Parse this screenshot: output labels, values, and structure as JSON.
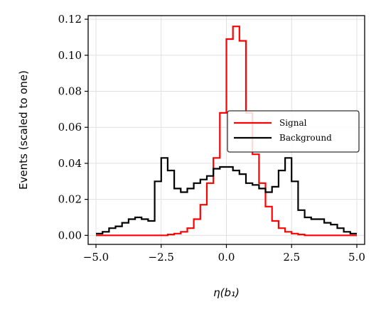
{
  "chart_data": {
    "type": "line",
    "step": true,
    "title": "",
    "xlabel": "η(b₁)",
    "ylabel": "Events (scaled to one)",
    "xlim": [
      -5.3,
      5.3
    ],
    "ylim": [
      -0.005,
      0.122
    ],
    "grid": true,
    "legend_placement": "center-right",
    "x_ticks": [
      -5.0,
      -2.5,
      0.0,
      2.5,
      5.0
    ],
    "x_tick_labels": [
      "−5.0",
      "−2.5",
      "0.0",
      "2.5",
      "5.0"
    ],
    "y_ticks": [
      0.0,
      0.02,
      0.04,
      0.06,
      0.08,
      0.1,
      0.12
    ],
    "y_tick_labels": [
      "0.00",
      "0.02",
      "0.04",
      "0.06",
      "0.08",
      "0.10",
      "0.12"
    ],
    "bin_edges": [
      -5.0,
      -4.75,
      -4.5,
      -4.25,
      -4.0,
      -3.75,
      -3.5,
      -3.25,
      -3.0,
      -2.75,
      -2.5,
      -2.25,
      -2.0,
      -1.75,
      -1.5,
      -1.25,
      -1.0,
      -0.75,
      -0.5,
      -0.25,
      0.0,
      0.25,
      0.5,
      0.75,
      1.0,
      1.25,
      1.5,
      1.75,
      2.0,
      2.25,
      2.5,
      2.75,
      3.0,
      3.25,
      3.5,
      3.75,
      4.0,
      4.25,
      4.5,
      4.75,
      5.0
    ],
    "series": [
      {
        "name": "Signal",
        "color": "#ff0000",
        "values": [
          0.0,
          0.0,
          0.0,
          0.0,
          0.0,
          0.0,
          0.0,
          0.0,
          0.0,
          0.0,
          0.0,
          0.0005,
          0.001,
          0.002,
          0.004,
          0.009,
          0.017,
          0.029,
          0.043,
          0.068,
          0.109,
          0.116,
          0.108,
          0.068,
          0.045,
          0.029,
          0.016,
          0.008,
          0.004,
          0.002,
          0.001,
          0.0005,
          0.0,
          0.0,
          0.0,
          0.0,
          0.0,
          0.0,
          0.0,
          0.0
        ]
      },
      {
        "name": "Background",
        "color": "#000000",
        "values": [
          0.001,
          0.002,
          0.004,
          0.005,
          0.007,
          0.009,
          0.01,
          0.009,
          0.008,
          0.03,
          0.043,
          0.036,
          0.026,
          0.024,
          0.026,
          0.029,
          0.031,
          0.033,
          0.037,
          0.038,
          0.038,
          0.036,
          0.034,
          0.029,
          0.028,
          0.026,
          0.024,
          0.027,
          0.036,
          0.043,
          0.03,
          0.014,
          0.01,
          0.009,
          0.009,
          0.007,
          0.006,
          0.004,
          0.002,
          0.001
        ]
      }
    ]
  }
}
